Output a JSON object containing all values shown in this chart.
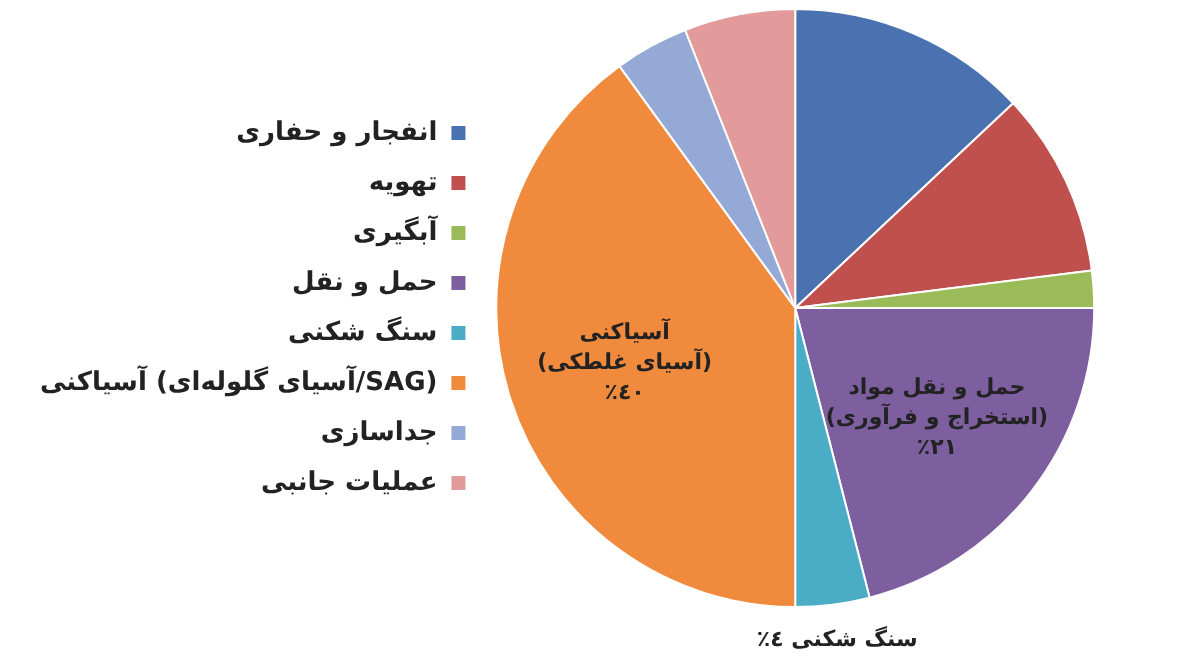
{
  "chart_data": {
    "type": "pie",
    "categories": [
      "انفجار و حفاری",
      "تهویه",
      "آبگیری",
      "حمل و نقل",
      "سنگ شکنی",
      "آسیاکنی (آسیای گلوله‌ای/SAG)",
      "جداسازی",
      "عملیات جانبی"
    ],
    "values": [
      13,
      10,
      2,
      21,
      4,
      40,
      4,
      6
    ],
    "colors": [
      "#4a72b0",
      "#c0504d",
      "#9bbb59",
      "#7d5fa0",
      "#4bacc6",
      "#f08a3c",
      "#94a9d6",
      "#e39a9a"
    ],
    "value_labels": [
      null,
      null,
      null,
      "حمل و نقل مواد\n(استخراج و فرآوری)\n٢١٪",
      "سنگ شکنی ٤٪",
      "آسیاکنی\n(آسیای غلطکی)\n٤٠٪",
      null,
      null
    ],
    "legend": "left"
  }
}
